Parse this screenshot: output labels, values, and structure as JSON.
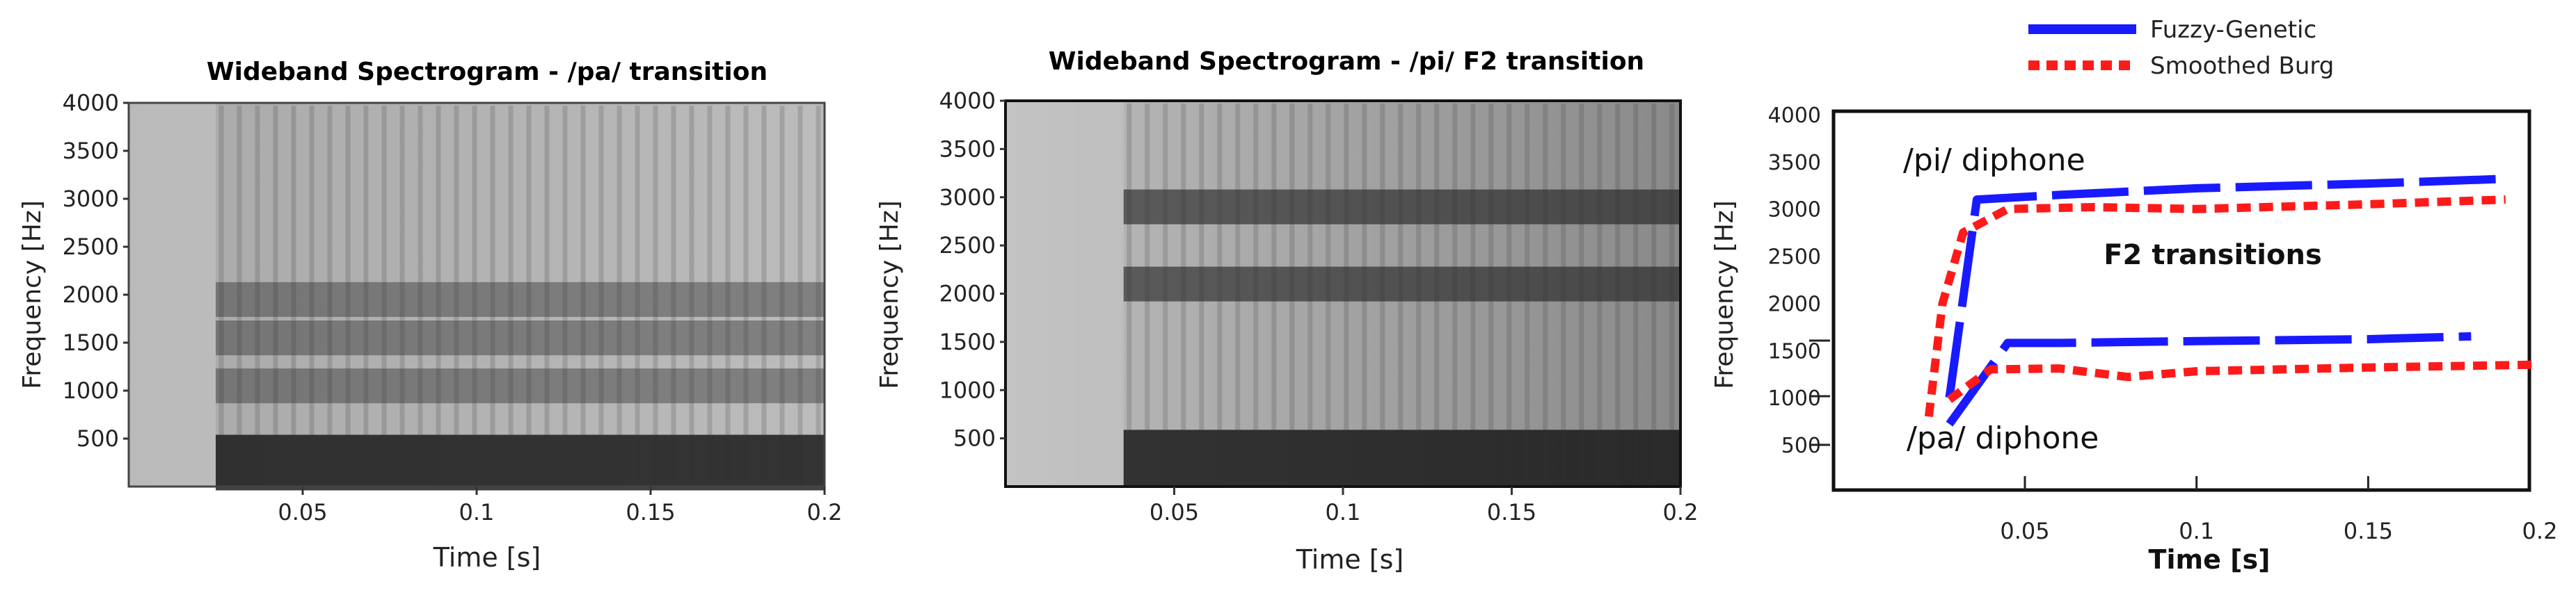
{
  "chart_data": [
    {
      "type": "heatmap",
      "title": "Wideband Spectrogram - /pa/ transition",
      "xlabel": "Time [s]",
      "ylabel": "Frequency [Hz]",
      "xlim": [
        0.0,
        0.2
      ],
      "ylim": [
        0,
        4000
      ],
      "x_ticks": [
        "0.05",
        "0.1",
        "0.15",
        "0.2"
      ],
      "y_ticks": [
        "500",
        "1000",
        "1500",
        "2000",
        "2500",
        "3000",
        "3500",
        "4000"
      ],
      "voicing_onset_s": 0.025,
      "dark_bands_hz": [
        250,
        1050,
        1550,
        1950
      ]
    },
    {
      "type": "heatmap",
      "title": "Wideband Spectrogram - /pi/ F2 transition",
      "xlabel": "Time [s]",
      "ylabel": "Frequency [Hz]",
      "xlim": [
        0.0,
        0.2
      ],
      "ylim": [
        0,
        4000
      ],
      "x_ticks": [
        "0.05",
        "0.1",
        "0.15",
        "0.2"
      ],
      "y_ticks": [
        "500",
        "1000",
        "1500",
        "2000",
        "2500",
        "3000",
        "3500",
        "4000"
      ],
      "voicing_onset_s": 0.035,
      "dark_bands_hz": [
        300,
        2100,
        2900
      ]
    },
    {
      "type": "line",
      "title": "F2 transitions",
      "xlabel": "Time [s]",
      "ylabel": "Frequency [Hz]",
      "xlim": [
        0.0,
        0.2
      ],
      "ylim": [
        0,
        4000
      ],
      "x_ticks": [
        "0.05",
        "0.1",
        "0.15",
        "0.2"
      ],
      "y_ticks": [
        "500",
        "1000",
        "1500",
        "2000",
        "2500",
        "3000",
        "3500",
        "4000"
      ],
      "legend": [
        "Fuzzy-Genetic",
        "Smoothed Burg"
      ],
      "legend_position": "top",
      "annotations": [
        "/pi/ diphone",
        "/pa/ diphone"
      ],
      "series": [
        {
          "name": "Fuzzy-Genetic",
          "color": "#1a1aff",
          "style": "dashed",
          "x": [
            0.028,
            0.036,
            0.06,
            0.1,
            0.15,
            0.19
          ],
          "y": [
            1000,
            3100,
            3150,
            3220,
            3270,
            3320
          ]
        },
        {
          "name": "Smoothed Burg",
          "color": "#ff1a1a",
          "style": "dotted",
          "x": [
            0.022,
            0.026,
            0.032,
            0.045,
            0.07,
            0.1,
            0.15,
            0.19
          ],
          "y": [
            800,
            2000,
            2750,
            3000,
            3020,
            3000,
            3050,
            3100
          ]
        },
        {
          "name": "Fuzzy-Genetic",
          "color": "#1a1aff",
          "style": "dashed",
          "x": [
            0.028,
            0.045,
            0.06,
            0.1,
            0.15,
            0.18
          ],
          "y": [
            720,
            1580,
            1580,
            1600,
            1620,
            1650
          ]
        },
        {
          "name": "Smoothed Burg",
          "color": "#ff1a1a",
          "style": "dotted",
          "x": [
            0.028,
            0.04,
            0.06,
            0.08,
            0.1,
            0.15,
            0.2
          ],
          "y": [
            980,
            1300,
            1310,
            1220,
            1280,
            1320,
            1350
          ]
        }
      ]
    }
  ]
}
